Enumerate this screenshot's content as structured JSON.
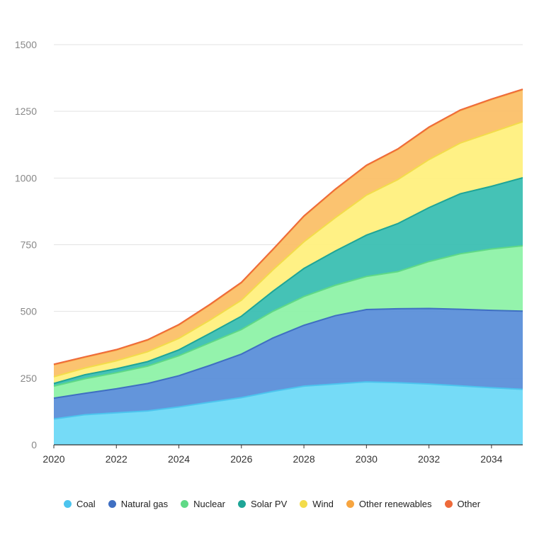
{
  "chart_data": {
    "type": "area",
    "stacked": true,
    "title": "",
    "xlabel": "",
    "ylabel": "",
    "x": [
      2020,
      2021,
      2022,
      2023,
      2024,
      2025,
      2026,
      2027,
      2028,
      2029,
      2030,
      2031,
      2032,
      2033,
      2034,
      2035
    ],
    "xticks": [
      2020,
      2022,
      2024,
      2026,
      2028,
      2030,
      2032,
      2034
    ],
    "yticks": [
      0,
      250,
      500,
      750,
      1000,
      1250,
      1500
    ],
    "ylim": [
      0,
      1500
    ],
    "xlim": [
      2020,
      2035
    ],
    "grid": true,
    "legend_position": "bottom",
    "series": [
      {
        "name": "Coal",
        "color": "#6ed9f7",
        "line_color": "#4cc4ee",
        "values": [
          97,
          113,
          120,
          127,
          142,
          160,
          177,
          200,
          220,
          228,
          236,
          233,
          228,
          221,
          214,
          208
        ]
      },
      {
        "name": "Natural gas",
        "color": "#5b8fd9",
        "line_color": "#3f6fc2",
        "values": [
          78,
          80,
          90,
          103,
          117,
          138,
          163,
          200,
          228,
          256,
          271,
          277,
          283,
          287,
          290,
          293
        ]
      },
      {
        "name": "Nuclear",
        "color": "#8ef2a8",
        "line_color": "#5fd986",
        "values": [
          45,
          55,
          60,
          65,
          75,
          85,
          92,
          100,
          108,
          114,
          124,
          139,
          176,
          208,
          230,
          245
        ]
      },
      {
        "name": "Solar PV",
        "color": "#3bbfb2",
        "line_color": "#1ea597",
        "values": [
          10,
          15,
          15,
          17,
          22,
          35,
          50,
          75,
          105,
          128,
          155,
          180,
          202,
          225,
          235,
          255
        ]
      },
      {
        "name": "Wind",
        "color": "#fff07e",
        "line_color": "#f3dc4a",
        "values": [
          25,
          25,
          30,
          37,
          43,
          50,
          60,
          80,
          100,
          125,
          150,
          165,
          180,
          190,
          202,
          210
        ]
      },
      {
        "name": "Other renewables",
        "color": "#fbc068",
        "line_color": "#f7a540",
        "values": [
          45,
          40,
          40,
          43,
          50,
          57,
          65,
          75,
          95,
          105,
          110,
          113,
          120,
          122,
          123,
          120
        ]
      },
      {
        "name": "Other",
        "color": "#f37a4f",
        "line_color": "#ee6a3a",
        "values": [
          2,
          2,
          2,
          2,
          2,
          2,
          2,
          2,
          2,
          2,
          2,
          2,
          2,
          2,
          2,
          2
        ]
      }
    ]
  }
}
